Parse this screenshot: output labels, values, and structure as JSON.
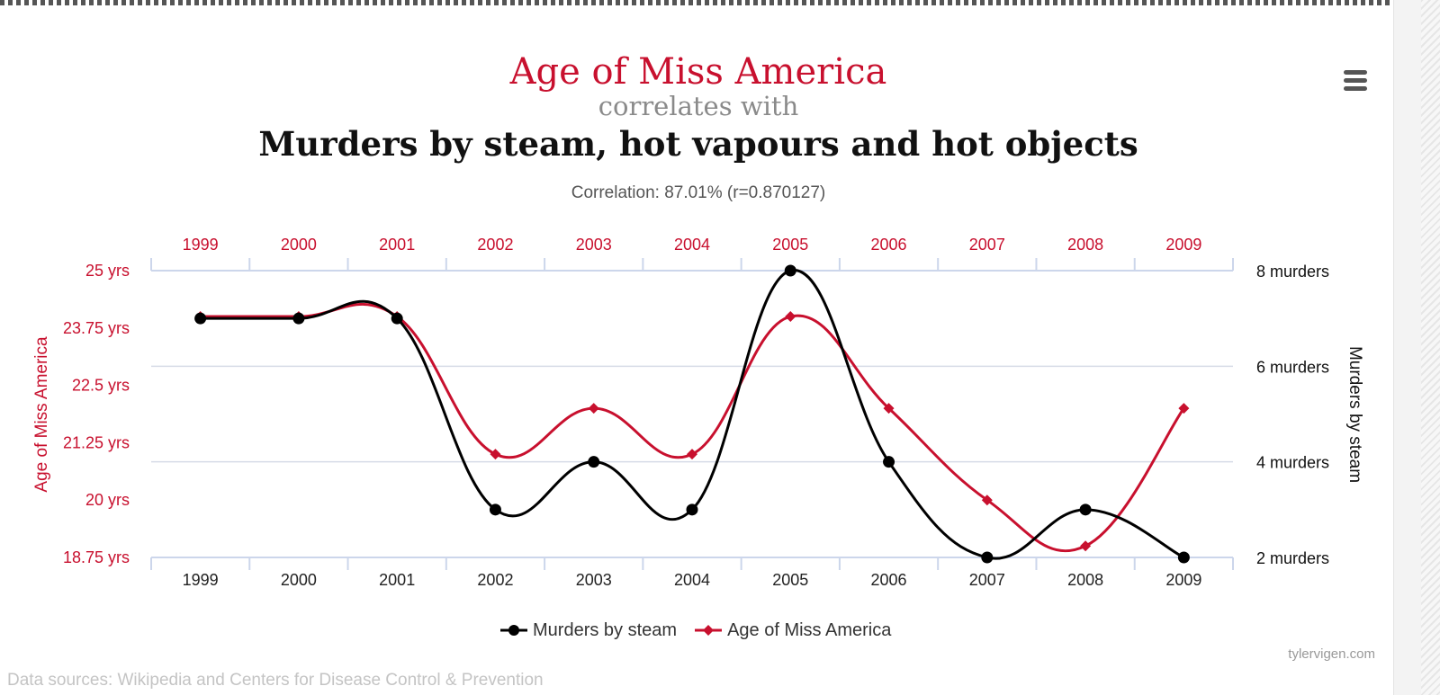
{
  "header": {
    "title_a": "Age of Miss America",
    "connector": "correlates with",
    "title_b": "Murders by steam, hot vapours and hot objects",
    "correlation": "Correlation: 87.01% (r=0.870127)"
  },
  "menu": {
    "icon": "hamburger-menu-icon"
  },
  "colors": {
    "red": "#c8102e",
    "black": "#000000",
    "grid": "#ccd6eb",
    "axis": "#ccd6eb"
  },
  "chart_data": {
    "type": "line",
    "title": "Age of Miss America correlates with Murders by steam, hot vapours and hot objects",
    "categories": [
      "1999",
      "2000",
      "2001",
      "2002",
      "2003",
      "2004",
      "2005",
      "2006",
      "2007",
      "2008",
      "2009"
    ],
    "series": [
      {
        "name": "Murders by steam",
        "axis": "right",
        "color": "#000000",
        "marker": "circle",
        "values": [
          7,
          7,
          7,
          3,
          4,
          3,
          8,
          4,
          2,
          3,
          2
        ]
      },
      {
        "name": "Age of Miss America",
        "axis": "left",
        "color": "#c8102e",
        "marker": "diamond",
        "values": [
          24,
          24,
          24,
          21,
          22,
          21,
          24,
          22,
          20,
          19,
          22
        ]
      }
    ],
    "left_axis": {
      "label": "Age of Miss America",
      "range": [
        18.75,
        25
      ],
      "ticks": [
        25,
        23.75,
        22.5,
        21.25,
        20,
        18.75
      ],
      "tick_labels": [
        "25 yrs",
        "23.75 yrs",
        "22.5 yrs",
        "21.25 yrs",
        "20 yrs",
        "18.75 yrs"
      ]
    },
    "right_axis": {
      "label": "Murders by steam",
      "range": [
        2,
        8
      ],
      "ticks": [
        8,
        6,
        4,
        2
      ],
      "tick_labels": [
        "8 murders",
        "6 murders",
        "4 murders",
        "2 murders"
      ]
    },
    "top_axis_labels": [
      "1999",
      "2000",
      "2001",
      "2002",
      "2003",
      "2004",
      "2005",
      "2006",
      "2007",
      "2008",
      "2009"
    ],
    "bottom_axis_labels": [
      "1999",
      "2000",
      "2001",
      "2002",
      "2003",
      "2004",
      "2005",
      "2006",
      "2007",
      "2008",
      "2009"
    ],
    "legend_position": "bottom"
  },
  "legend": {
    "items": [
      {
        "label": "Murders by steam"
      },
      {
        "label": "Age of Miss America"
      }
    ]
  },
  "footer": {
    "credit": "tylervigen.com",
    "sources": "Data sources: Wikipedia and Centers for Disease Control & Prevention"
  }
}
